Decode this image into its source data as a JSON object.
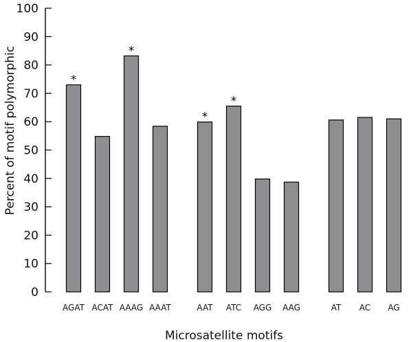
{
  "chart_data": {
    "type": "bar",
    "title": "",
    "xlabel": "Microsatellite motifs",
    "ylabel": "Percent of motif polymorphic",
    "ylim": [
      0,
      100
    ],
    "yticks": [
      0,
      10,
      20,
      30,
      40,
      50,
      60,
      70,
      80,
      90,
      100
    ],
    "grid": false,
    "legend": "none",
    "bar_color": "#8f8f91",
    "categories": [
      "AGAT",
      "ACAT",
      "AAAG",
      "AAAT",
      "AAT",
      "ATC",
      "AGG",
      "AAG",
      "AT",
      "AC",
      "AG"
    ],
    "groups": [
      [
        "AGAT",
        "ACAT",
        "AAAG",
        "AAAT"
      ],
      [
        "AAT",
        "ATC",
        "AGG",
        "AAG"
      ],
      [
        "AT",
        "AC",
        "AG"
      ]
    ],
    "values": [
      73,
      54.8,
      83.2,
      58.4,
      59.9,
      65.5,
      39.8,
      38.7,
      60.6,
      61.5,
      61
    ],
    "annotations": [
      {
        "category": "AGAT",
        "text": "*"
      },
      {
        "category": "AAAG",
        "text": "*"
      },
      {
        "category": "AAT",
        "text": "*"
      },
      {
        "category": "ATC",
        "text": "*"
      }
    ]
  }
}
